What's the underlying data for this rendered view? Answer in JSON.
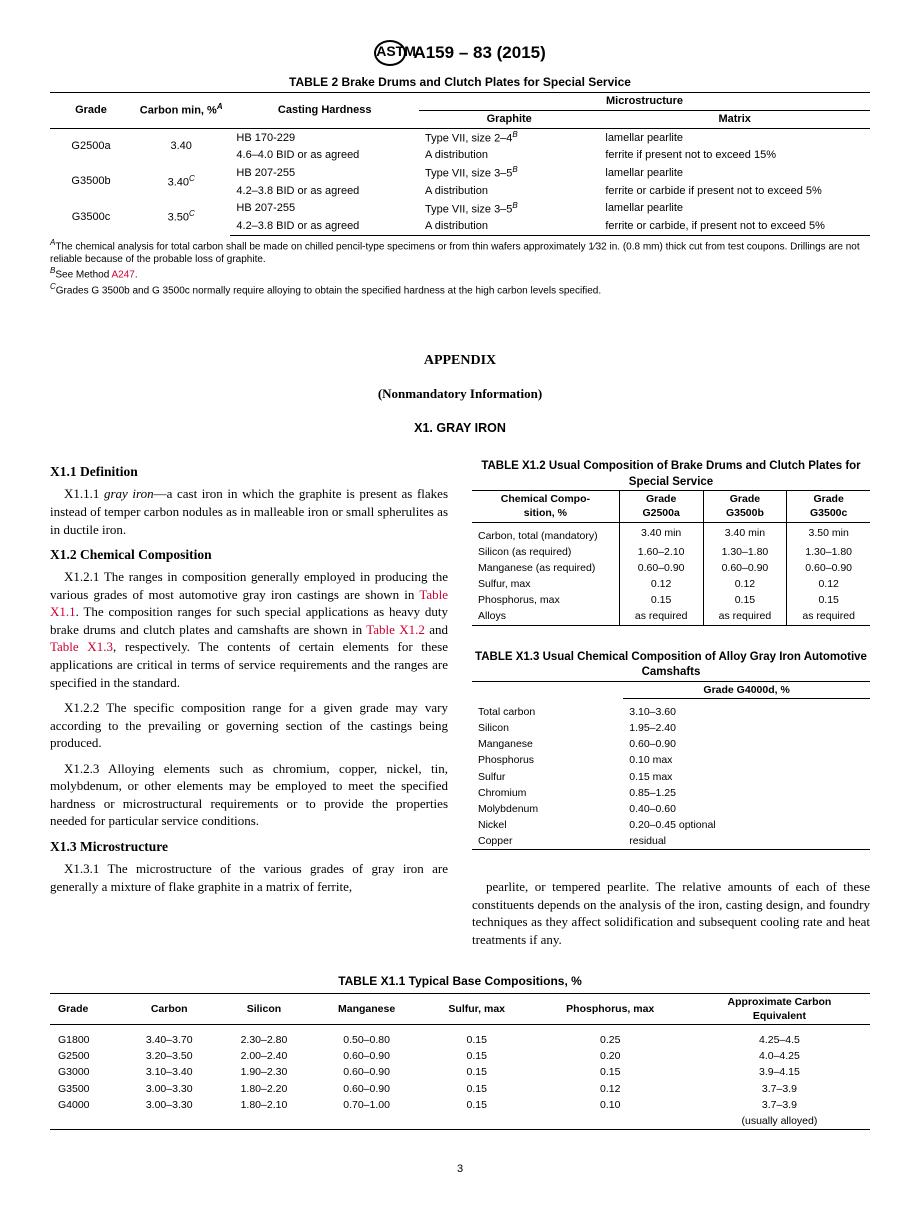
{
  "header": {
    "logo": "ASTM",
    "docnum": "A159 – 83 (2015)"
  },
  "table2": {
    "title": "TABLE 2 Brake Drums and Clutch Plates for Special Service",
    "h_grade": "Grade",
    "h_carbon": "Carbon min, %",
    "h_casting": "Casting Hardness",
    "h_micro": "Microstructure",
    "h_graphite": "Graphite",
    "h_matrix": "Matrix",
    "sup_a": "A",
    "sup_b": "B",
    "sup_c": "C",
    "rows": [
      {
        "grade": "G2500a",
        "carbon": "3.40",
        "carbon_sup": "",
        "hard1": "HB 170-229",
        "hard2": "4.6–4.0 BID or as agreed",
        "graph1": "Type VII, size 2–4",
        "graph2": "A distribution",
        "matrix1": "lamellar pearlite",
        "matrix2": "ferrite if present not to exceed 15%"
      },
      {
        "grade": "G3500b",
        "carbon": "3.40",
        "carbon_sup": "C",
        "hard1": "HB 207-255",
        "hard2": "4.2–3.8 BID or as agreed",
        "graph1": "Type VII, size 3–5",
        "graph2": "A distribution",
        "matrix1": "lamellar pearlite",
        "matrix2": "ferrite or carbide if present not to exceed 5%"
      },
      {
        "grade": "G3500c",
        "carbon": "3.50",
        "carbon_sup": "C",
        "hard1": "HB 207-255",
        "hard2": "4.2–3.8 BID or as agreed",
        "graph1": "Type VII, size 3–5",
        "graph2": "A distribution",
        "matrix1": "lamellar pearlite",
        "matrix2": "ferrite or carbide, if present not to exceed 5%"
      }
    ],
    "fn_a": "The chemical analysis for total carbon shall be made on chilled pencil-type specimens or from thin wafers approximately 1⁄32 in. (0.8 mm) thick cut from test coupons. Drillings are not reliable because of the probable loss of graphite.",
    "fn_b_pre": "See Method ",
    "fn_b_link": "A247",
    "fn_b_post": ".",
    "fn_c": "Grades G 3500b and G 3500c normally require alloying to obtain the specified hardness at the high carbon levels specified."
  },
  "appendix": {
    "title": "APPENDIX",
    "sub": "(Nonmandatory Information)",
    "x1": "X1.  GRAY  IRON"
  },
  "left": {
    "h_def": "X1.1  Definition",
    "p_def_pre": "X1.1.1 ",
    "p_def_ital": "gray iron",
    "p_def_rest": "—a cast iron in which the graphite is present as flakes instead of temper carbon nodules as in malleable iron or small spherulites as in ductile iron.",
    "h_chem": "X1.2  Chemical Composition",
    "p_121a": "X1.2.1 The ranges in composition generally employed in producing the various grades of most automotive gray iron castings are shown in ",
    "p_121_l1": "Table X1.1",
    "p_121b": ". The composition ranges for such special applications as heavy duty brake drums and clutch plates and camshafts are shown in ",
    "p_121_l2": "Table X1.2",
    "p_121_and": " and ",
    "p_121_l3": "Table X1.3",
    "p_121c": ", respectively. The contents of certain elements for these applications are critical in terms of service requirements and the ranges are specified in the standard.",
    "p_122": "X1.2.2 The specific composition range for a given grade may vary according to the prevailing or governing section of the castings being produced.",
    "p_123": "X1.2.3 Alloying elements such as chromium, copper, nickel, tin, molybdenum, or other elements may be employed to meet the specified hardness or microstructural requirements or to provide the properties needed for particular service conditions.",
    "h_micro": "X1.3  Microstructure",
    "p_131": "X1.3.1 The microstructure of the various grades of gray iron are generally a mixture of flake graphite in a matrix of ferrite,"
  },
  "tx12": {
    "title": "TABLE X1.2 Usual Composition of Brake Drums and Clutch Plates for Special Service",
    "h_chem1": "Chemical Compo-",
    "h_chem2": "sition, %",
    "h_g1a": "Grade",
    "h_g1b": "G2500a",
    "h_g2a": "Grade",
    "h_g2b": "G3500b",
    "h_g3a": "Grade",
    "h_g3b": "G3500c",
    "rows": [
      {
        "k": "Carbon, total (mandatory)",
        "a": "3.40 min",
        "b": "3.40 min",
        "c": "3.50 min"
      },
      {
        "k": "Silicon (as required)",
        "a": "1.60–2.10",
        "b": "1.30–1.80",
        "c": "1.30–1.80"
      },
      {
        "k": "Manganese (as required)",
        "a": "0.60–0.90",
        "b": "0.60–0.90",
        "c": "0.60–0.90"
      },
      {
        "k": "Sulfur, max",
        "a": "0.12",
        "b": "0.12",
        "c": "0.12"
      },
      {
        "k": "Phosphorus, max",
        "a": "0.15",
        "b": "0.15",
        "c": "0.15"
      },
      {
        "k": "Alloys",
        "a": "as required",
        "b": "as required",
        "c": "as required"
      }
    ]
  },
  "tx13": {
    "title": "TABLE X1.3 Usual Chemical Composition of Alloy Gray Iron Automotive Camshafts",
    "h_grade": "Grade G4000d, %",
    "rows": [
      {
        "k": "Total carbon",
        "v": "3.10–3.60"
      },
      {
        "k": "Silicon",
        "v": "1.95–2.40"
      },
      {
        "k": "Manganese",
        "v": "0.60–0.90"
      },
      {
        "k": "Phosphorus",
        "v": "0.10 max"
      },
      {
        "k": "Sulfur",
        "v": "0.15 max"
      },
      {
        "k": "Chromium",
        "v": "0.85–1.25"
      },
      {
        "k": "Molybdenum",
        "v": "0.40–0.60"
      },
      {
        "k": "Nickel",
        "v": "0.20–0.45 optional"
      },
      {
        "k": "Copper",
        "v": "residual"
      }
    ]
  },
  "right_cont": "pearlite, or tempered pearlite. The relative amounts of each of these constituents depends on the analysis of the iron, casting design, and foundry techniques as they affect solidification and subsequent cooling rate and heat treatments if any.",
  "tx11": {
    "title": "TABLE X1.1 Typical Base Compositions, %",
    "h": [
      "Grade",
      "Carbon",
      "Silicon",
      "Manganese",
      "Sulfur, max",
      "Phosphorus, max",
      "Approximate Carbon Equivalent"
    ],
    "rows": [
      [
        "G1800",
        "3.40–3.70",
        "2.30–2.80",
        "0.50–0.80",
        "0.15",
        "0.25",
        "4.25–4.5"
      ],
      [
        "G2500",
        "3.20–3.50",
        "2.00–2.40",
        "0.60–0.90",
        "0.15",
        "0.20",
        "4.0–4.25"
      ],
      [
        "G3000",
        "3.10–3.40",
        "1.90–2.30",
        "0.60–0.90",
        "0.15",
        "0.15",
        "3.9–4.15"
      ],
      [
        "G3500",
        "3.00–3.30",
        "1.80–2.20",
        "0.60–0.90",
        "0.15",
        "0.12",
        "3.7–3.9"
      ],
      [
        "G4000",
        "3.00–3.30",
        "1.80–2.10",
        "0.70–1.00",
        "0.15",
        "0.10",
        "3.7–3.9"
      ]
    ],
    "last_extra": "(usually alloyed)"
  },
  "pgnum": "3"
}
